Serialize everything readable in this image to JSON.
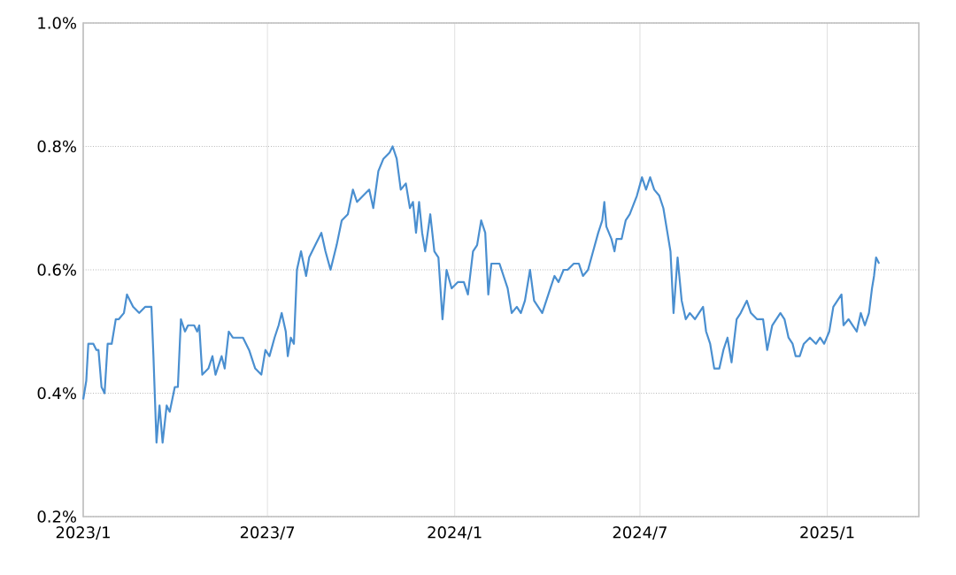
{
  "chart_data": {
    "type": "line",
    "xlim": [
      "2023-01-01",
      "2025-04-01"
    ],
    "ylim": [
      0.2,
      1.0
    ],
    "xticks": [
      {
        "value": "2023-01-01",
        "label": "2023/1"
      },
      {
        "value": "2023-07-01",
        "label": "2023/7"
      },
      {
        "value": "2024-01-01",
        "label": "2024/1"
      },
      {
        "value": "2024-07-01",
        "label": "2024/7"
      },
      {
        "value": "2025-01-01",
        "label": "2025/1"
      }
    ],
    "yticks": [
      {
        "value": 0.2,
        "label": "0.2%"
      },
      {
        "value": 0.4,
        "label": "0.4%"
      },
      {
        "value": 0.6,
        "label": "0.6%"
      },
      {
        "value": 0.8,
        "label": "0.8%"
      },
      {
        "value": 1.0,
        "label": "1.0%"
      }
    ],
    "grid": true,
    "marker": "none",
    "line_style": "solid",
    "series": [
      {
        "color": "#4a8fd0",
        "x": [
          "2023-01-01",
          "2023-01-04",
          "2023-01-06",
          "2023-01-11",
          "2023-01-14",
          "2023-01-16",
          "2023-01-19",
          "2023-01-22",
          "2023-01-25",
          "2023-01-29",
          "2023-02-02",
          "2023-02-05",
          "2023-02-10",
          "2023-02-13",
          "2023-02-19",
          "2023-02-25",
          "2023-03-03",
          "2023-03-09",
          "2023-03-11",
          "2023-03-14",
          "2023-03-17",
          "2023-03-20",
          "2023-03-24",
          "2023-03-27",
          "2023-04-01",
          "2023-04-04",
          "2023-04-07",
          "2023-04-11",
          "2023-04-14",
          "2023-04-20",
          "2023-04-23",
          "2023-04-25",
          "2023-04-28",
          "2023-05-04",
          "2023-05-08",
          "2023-05-11",
          "2023-05-17",
          "2023-05-20",
          "2023-05-24",
          "2023-05-28",
          "2023-06-01",
          "2023-06-07",
          "2023-06-13",
          "2023-06-19",
          "2023-06-25",
          "2023-06-29",
          "2023-07-03",
          "2023-07-08",
          "2023-07-12",
          "2023-07-15",
          "2023-07-19",
          "2023-07-21",
          "2023-07-24",
          "2023-07-27",
          "2023-07-30",
          "2023-08-03",
          "2023-08-08",
          "2023-08-11",
          "2023-08-17",
          "2023-08-23",
          "2023-08-27",
          "2023-09-01",
          "2023-09-07",
          "2023-09-12",
          "2023-09-18",
          "2023-09-23",
          "2023-09-27",
          "2023-10-03",
          "2023-10-09",
          "2023-10-13",
          "2023-10-18",
          "2023-10-23",
          "2023-10-29",
          "2023-11-01",
          "2023-11-05",
          "2023-11-09",
          "2023-11-14",
          "2023-11-18",
          "2023-11-21",
          "2023-11-24",
          "2023-11-27",
          "2023-11-30",
          "2023-12-03",
          "2023-12-08",
          "2023-12-12",
          "2023-12-16",
          "2023-12-20",
          "2023-12-24",
          "2023-12-29",
          "2024-01-04",
          "2024-01-10",
          "2024-01-14",
          "2024-01-19",
          "2024-01-23",
          "2024-01-27",
          "2024-01-31",
          "2024-02-03",
          "2024-02-06",
          "2024-02-11",
          "2024-02-14",
          "2024-02-18",
          "2024-02-22",
          "2024-02-26",
          "2024-03-02",
          "2024-03-06",
          "2024-03-10",
          "2024-03-15",
          "2024-03-19",
          "2024-03-23",
          "2024-03-27",
          "2024-03-31",
          "2024-04-04",
          "2024-04-08",
          "2024-04-12",
          "2024-04-17",
          "2024-04-21",
          "2024-04-27",
          "2024-05-02",
          "2024-05-06",
          "2024-05-11",
          "2024-05-16",
          "2024-05-21",
          "2024-05-25",
          "2024-05-27",
          "2024-05-29",
          "2024-06-03",
          "2024-06-06",
          "2024-06-08",
          "2024-06-13",
          "2024-06-17",
          "2024-06-21",
          "2024-06-28",
          "2024-07-03",
          "2024-07-07",
          "2024-07-11",
          "2024-07-15",
          "2024-07-20",
          "2024-07-24",
          "2024-07-28",
          "2024-07-31",
          "2024-08-03",
          "2024-08-07",
          "2024-08-11",
          "2024-08-15",
          "2024-08-19",
          "2024-08-24",
          "2024-08-28",
          "2024-09-01",
          "2024-09-04",
          "2024-09-08",
          "2024-09-12",
          "2024-09-17",
          "2024-09-21",
          "2024-09-25",
          "2024-09-29",
          "2024-10-04",
          "2024-10-08",
          "2024-10-14",
          "2024-10-18",
          "2024-10-24",
          "2024-10-30",
          "2024-11-03",
          "2024-11-08",
          "2024-11-12",
          "2024-11-16",
          "2024-11-20",
          "2024-11-24",
          "2024-11-28",
          "2024-12-01",
          "2024-12-05",
          "2024-12-09",
          "2024-12-15",
          "2024-12-21",
          "2024-12-25",
          "2024-12-29",
          "2025-01-03",
          "2025-01-07",
          "2025-01-11",
          "2025-01-15",
          "2025-01-17",
          "2025-01-22",
          "2025-01-26",
          "2025-01-30",
          "2025-02-03",
          "2025-02-07",
          "2025-02-11",
          "2025-02-14",
          "2025-02-16",
          "2025-02-18",
          "2025-02-21"
        ],
        "values": [
          0.39,
          0.42,
          0.48,
          0.48,
          0.47,
          0.47,
          0.41,
          0.4,
          0.48,
          0.48,
          0.52,
          0.52,
          0.53,
          0.56,
          0.54,
          0.53,
          0.54,
          0.54,
          0.46,
          0.32,
          0.38,
          0.32,
          0.38,
          0.37,
          0.41,
          0.41,
          0.52,
          0.5,
          0.51,
          0.51,
          0.5,
          0.51,
          0.43,
          0.44,
          0.46,
          0.43,
          0.46,
          0.44,
          0.5,
          0.49,
          0.49,
          0.49,
          0.47,
          0.44,
          0.43,
          0.47,
          0.46,
          0.49,
          0.51,
          0.53,
          0.5,
          0.46,
          0.49,
          0.48,
          0.6,
          0.63,
          0.59,
          0.62,
          0.64,
          0.66,
          0.63,
          0.6,
          0.64,
          0.68,
          0.69,
          0.73,
          0.71,
          0.72,
          0.73,
          0.7,
          0.76,
          0.78,
          0.79,
          0.8,
          0.78,
          0.73,
          0.74,
          0.7,
          0.71,
          0.66,
          0.71,
          0.66,
          0.63,
          0.69,
          0.63,
          0.62,
          0.52,
          0.6,
          0.57,
          0.58,
          0.58,
          0.56,
          0.63,
          0.64,
          0.68,
          0.66,
          0.56,
          0.61,
          0.61,
          0.61,
          0.59,
          0.57,
          0.53,
          0.54,
          0.53,
          0.55,
          0.6,
          0.55,
          0.54,
          0.53,
          0.55,
          0.57,
          0.59,
          0.58,
          0.6,
          0.6,
          0.61,
          0.61,
          0.59,
          0.6,
          0.63,
          0.66,
          0.68,
          0.71,
          0.67,
          0.65,
          0.63,
          0.65,
          0.65,
          0.68,
          0.69,
          0.72,
          0.75,
          0.73,
          0.75,
          0.73,
          0.72,
          0.7,
          0.66,
          0.63,
          0.53,
          0.62,
          0.55,
          0.52,
          0.53,
          0.52,
          0.53,
          0.54,
          0.5,
          0.48,
          0.44,
          0.44,
          0.47,
          0.49,
          0.45,
          0.52,
          0.53,
          0.55,
          0.53,
          0.52,
          0.52,
          0.47,
          0.51,
          0.52,
          0.53,
          0.52,
          0.49,
          0.48,
          0.46,
          0.46,
          0.48,
          0.49,
          0.48,
          0.49,
          0.48,
          0.5,
          0.54,
          0.55,
          0.56,
          0.51,
          0.52,
          0.51,
          0.5,
          0.53,
          0.51,
          0.53,
          0.57,
          0.59,
          0.62,
          0.61
        ]
      }
    ]
  }
}
